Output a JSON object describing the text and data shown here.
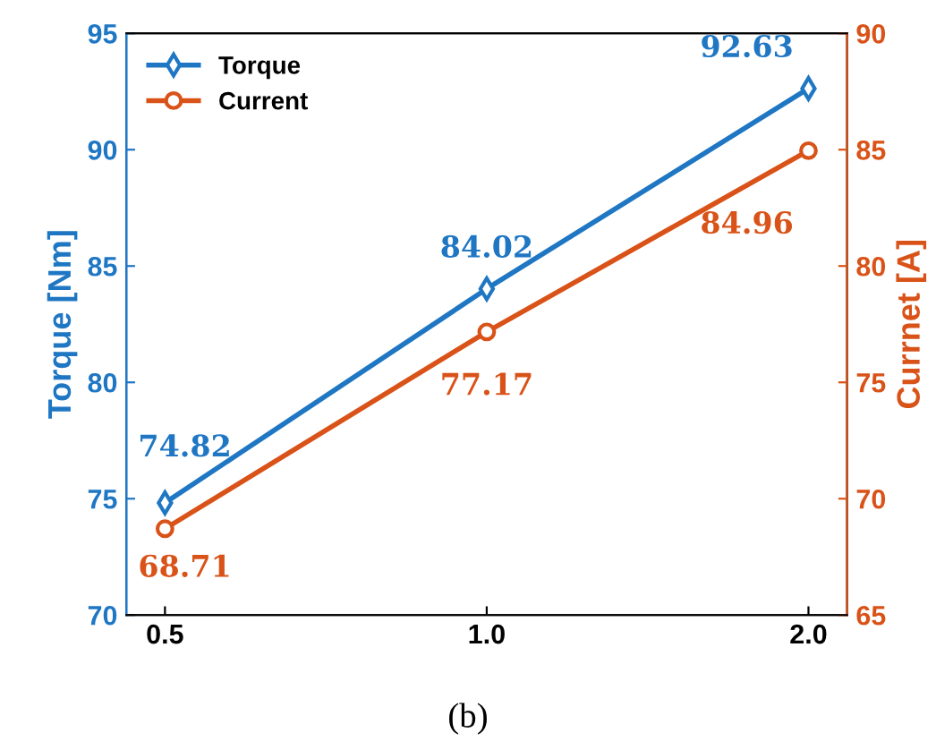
{
  "chart_data": {
    "type": "line",
    "categories": [
      "0.5",
      "1.0",
      "2.0"
    ],
    "series": [
      {
        "name": "Torque",
        "color": "#1f77c4",
        "values": [
          74.82,
          84.02,
          92.63
        ],
        "marker": "diamond"
      },
      {
        "name": "Current",
        "color": "#d95319",
        "values": [
          68.71,
          77.17,
          84.96
        ],
        "marker": "circle",
        "axis": "y2"
      }
    ],
    "ylabel": "Torque [Nm]",
    "y2label": "Currnet [A]",
    "ylim": [
      70,
      95
    ],
    "yticks": [
      70,
      75,
      80,
      85,
      90,
      95
    ],
    "y2lim": [
      65,
      90
    ],
    "y2ticks": [
      65,
      70,
      75,
      80,
      85,
      90
    ],
    "data_labels": true,
    "legend": "top left",
    "grid": false,
    "annotations": [
      "(b)"
    ]
  }
}
